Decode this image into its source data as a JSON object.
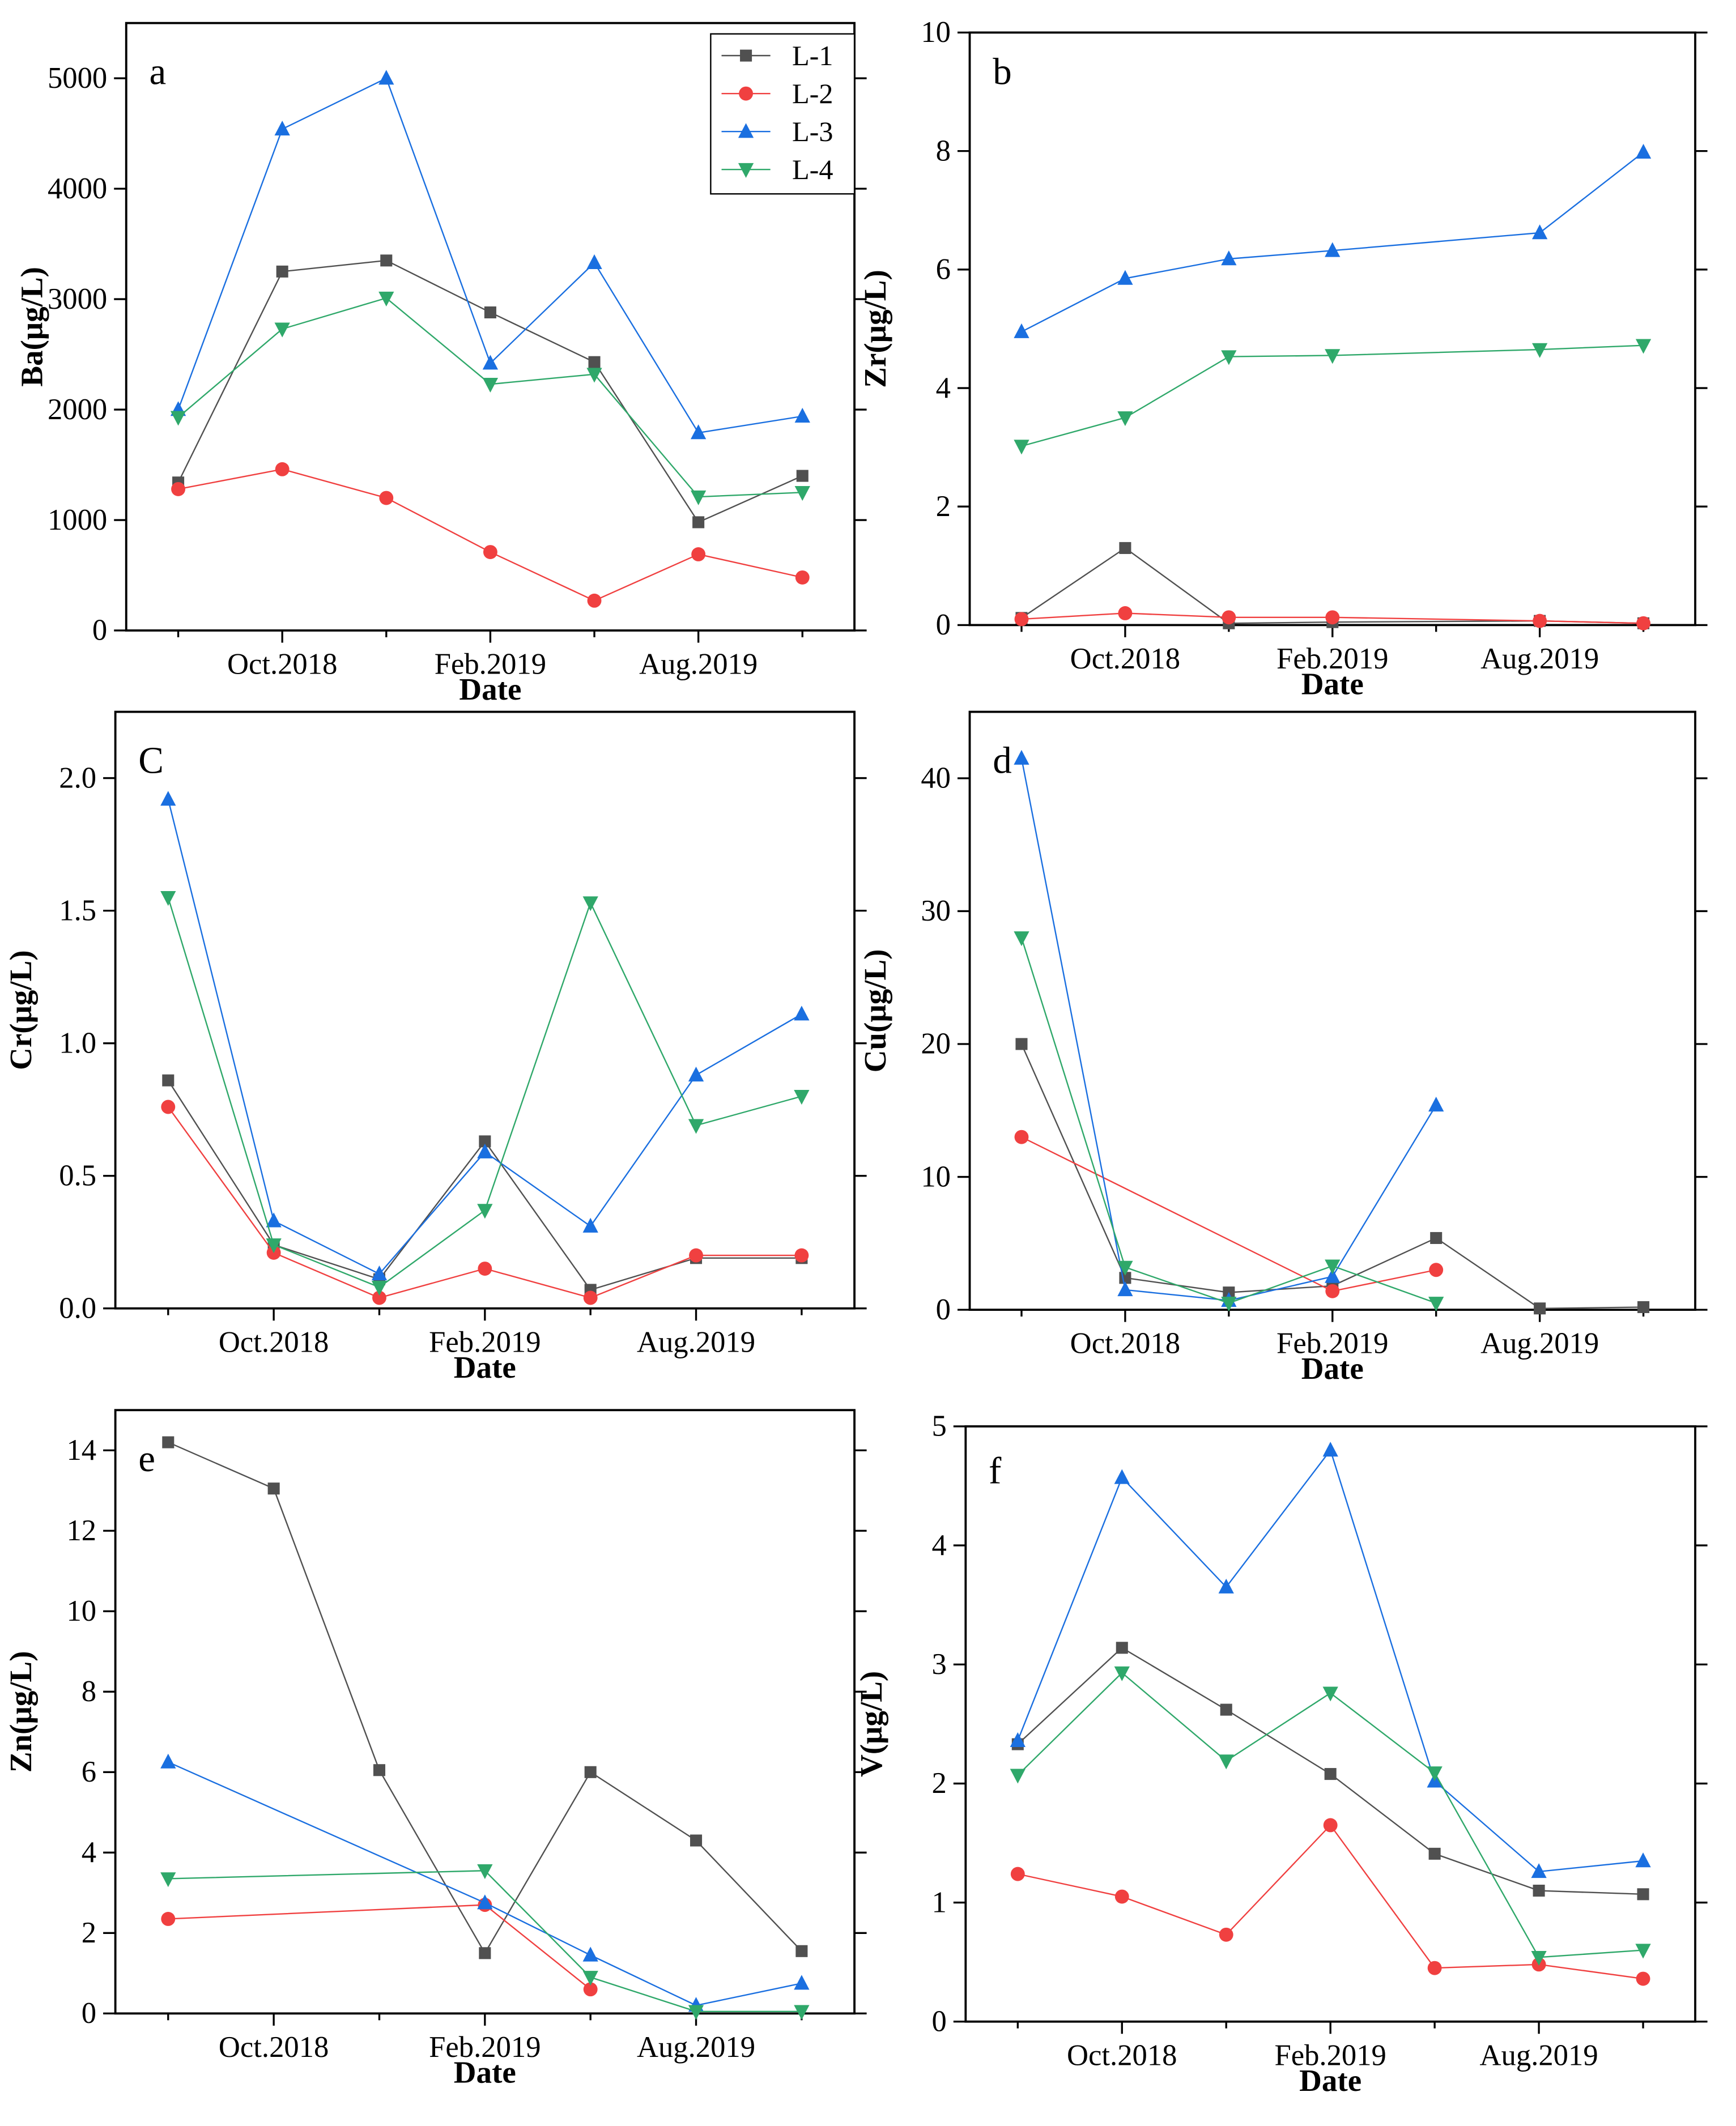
{
  "chart_data": [
    {
      "type": "line",
      "panel_letter": "a",
      "ylabel": "Ba(μg/L)",
      "xlabel": "Date",
      "ylim": [
        0,
        5500
      ],
      "yticks": [
        0,
        1000,
        2000,
        3000,
        4000,
        5000
      ],
      "x": [
        1,
        2,
        3,
        4,
        5,
        6,
        7
      ],
      "xtick_labels": [
        {
          "x": 2,
          "label": "Oct.2018"
        },
        {
          "x": 4,
          "label": "Feb.2019"
        },
        {
          "x": 6,
          "label": "Aug.2019"
        }
      ],
      "legend": {
        "placement": "top-right",
        "entries": [
          "L-1",
          "L-2",
          "L-3",
          "L-4"
        ]
      },
      "series": [
        {
          "name": "L-1",
          "values": [
            1340,
            3250,
            3350,
            2880,
            2430,
            980,
            1400
          ]
        },
        {
          "name": "L-2",
          "values": [
            1280,
            1460,
            1200,
            710,
            270,
            690,
            480
          ]
        },
        {
          "name": "L-3",
          "values": [
            2000,
            4540,
            5000,
            2420,
            3330,
            1790,
            1940
          ]
        },
        {
          "name": "L-4",
          "values": [
            1930,
            2730,
            3010,
            2230,
            2320,
            1210,
            1250
          ]
        }
      ]
    },
    {
      "type": "line",
      "panel_letter": "b",
      "ylabel": "Zr(μg/L)",
      "xlabel": "Date",
      "ylim": [
        0,
        10
      ],
      "yticks": [
        0,
        2,
        4,
        6,
        8,
        10
      ],
      "x": [
        1,
        2,
        3,
        4,
        5,
        6,
        7
      ],
      "xtick_labels": [
        {
          "x": 2,
          "label": "Oct.2018"
        },
        {
          "x": 4,
          "label": "Feb.2019"
        },
        {
          "x": 6,
          "label": "Aug.2019"
        }
      ],
      "series": [
        {
          "name": "L-1",
          "values": [
            0.12,
            1.3,
            0.03,
            0.05,
            null,
            0.07,
            0.03
          ]
        },
        {
          "name": "L-2",
          "values": [
            0.1,
            0.2,
            0.13,
            0.13,
            null,
            0.07,
            0.03
          ]
        },
        {
          "name": "L-3",
          "values": [
            4.95,
            5.85,
            6.18,
            6.32,
            null,
            6.62,
            7.98
          ]
        },
        {
          "name": "L-4",
          "values": [
            3.02,
            3.5,
            4.53,
            4.55,
            null,
            4.65,
            4.72
          ]
        }
      ]
    },
    {
      "type": "line",
      "panel_letter": "C",
      "ylabel": "Cr(μg/L)",
      "xlabel": "Date",
      "ylim": [
        0,
        2.25
      ],
      "yticks": [
        0.0,
        0.5,
        1.0,
        1.5,
        2.0
      ],
      "x": [
        1,
        2,
        3,
        4,
        5,
        6,
        7
      ],
      "xtick_labels": [
        {
          "x": 2,
          "label": "Oct.2018"
        },
        {
          "x": 4,
          "label": "Feb.2019"
        },
        {
          "x": 6,
          "label": "Aug.2019"
        }
      ],
      "series": [
        {
          "name": "L-1",
          "values": [
            0.86,
            0.24,
            0.11,
            0.63,
            0.07,
            0.19,
            0.19
          ]
        },
        {
          "name": "L-2",
          "values": [
            0.76,
            0.21,
            0.04,
            0.15,
            0.04,
            0.2,
            0.2
          ]
        },
        {
          "name": "L-3",
          "values": [
            1.92,
            0.33,
            0.13,
            0.59,
            0.31,
            0.88,
            1.11
          ]
        },
        {
          "name": "L-4",
          "values": [
            1.55,
            0.24,
            0.08,
            0.37,
            1.53,
            0.69,
            0.8
          ]
        }
      ]
    },
    {
      "type": "line",
      "panel_letter": "d",
      "ylabel": "Cu(μg/L)",
      "xlabel": "Date",
      "ylim": [
        0,
        45
      ],
      "yticks": [
        0,
        10,
        20,
        30,
        40
      ],
      "x": [
        1,
        2,
        3,
        4,
        5,
        6,
        7
      ],
      "xtick_labels": [
        {
          "x": 2,
          "label": "Oct.2018"
        },
        {
          "x": 4,
          "label": "Feb.2019"
        },
        {
          "x": 6,
          "label": "Aug.2019"
        }
      ],
      "series": [
        {
          "name": "L-1",
          "values": [
            20,
            2.4,
            1.3,
            1.8,
            5.4,
            0.1,
            0.2
          ]
        },
        {
          "name": "L-2",
          "values": [
            13,
            null,
            null,
            1.4,
            3.0,
            null,
            null
          ]
        },
        {
          "name": "L-3",
          "values": [
            41.5,
            1.5,
            0.7,
            2.5,
            15.4,
            null,
            null
          ]
        },
        {
          "name": "L-4",
          "values": [
            28,
            3.2,
            0.5,
            3.3,
            0.5,
            null,
            null
          ]
        }
      ]
    },
    {
      "type": "line",
      "panel_letter": "e",
      "ylabel": "Zn(μg/L)",
      "xlabel": "Date",
      "ylim": [
        0,
        15
      ],
      "yticks": [
        0,
        2,
        4,
        6,
        8,
        10,
        12,
        14
      ],
      "x": [
        1,
        2,
        3,
        4,
        5,
        6,
        7
      ],
      "xtick_labels": [
        {
          "x": 2,
          "label": "Oct.2018"
        },
        {
          "x": 4,
          "label": "Feb.2019"
        },
        {
          "x": 6,
          "label": "Aug.2019"
        }
      ],
      "series": [
        {
          "name": "L-1",
          "values": [
            14.2,
            13.05,
            6.05,
            1.5,
            6.0,
            4.3,
            1.55
          ]
        },
        {
          "name": "L-2",
          "values": [
            2.35,
            null,
            null,
            2.7,
            0.6,
            null,
            null
          ]
        },
        {
          "name": "L-3",
          "values": [
            6.25,
            null,
            null,
            2.75,
            1.45,
            0.2,
            0.75
          ]
        },
        {
          "name": "L-4",
          "values": [
            3.35,
            null,
            null,
            3.55,
            0.9,
            0.05,
            0.05
          ]
        }
      ]
    },
    {
      "type": "line",
      "panel_letter": "f",
      "ylabel": "V(μg/L)",
      "xlabel": "Date",
      "ylim": [
        0,
        5
      ],
      "yticks": [
        0,
        1,
        2,
        3,
        4,
        5
      ],
      "x": [
        1,
        2,
        3,
        4,
        5,
        6,
        7
      ],
      "xtick_labels": [
        {
          "x": 2,
          "label": "Oct.2018"
        },
        {
          "x": 4,
          "label": "Feb.2019"
        },
        {
          "x": 6,
          "label": "Aug.2019"
        }
      ],
      "series": [
        {
          "name": "L-1",
          "values": [
            2.33,
            3.14,
            2.62,
            2.08,
            1.41,
            1.1,
            1.07
          ]
        },
        {
          "name": "L-2",
          "values": [
            1.24,
            1.05,
            0.73,
            1.65,
            0.45,
            0.48,
            0.36
          ]
        },
        {
          "name": "L-3",
          "values": [
            2.36,
            4.57,
            3.65,
            4.8,
            2.02,
            1.26,
            1.35
          ]
        },
        {
          "name": "L-4",
          "values": [
            2.07,
            2.93,
            2.19,
            2.76,
            2.09,
            0.54,
            0.6
          ]
        }
      ]
    }
  ],
  "series_styles": {
    "L-1": {
      "color": "#505050",
      "marker": "square"
    },
    "L-2": {
      "color": "#f04040",
      "marker": "circle"
    },
    "L-3": {
      "color": "#1a6fe0",
      "marker": "triangle-up"
    },
    "L-4": {
      "color": "#2fa86a",
      "marker": "triangle-down"
    }
  }
}
